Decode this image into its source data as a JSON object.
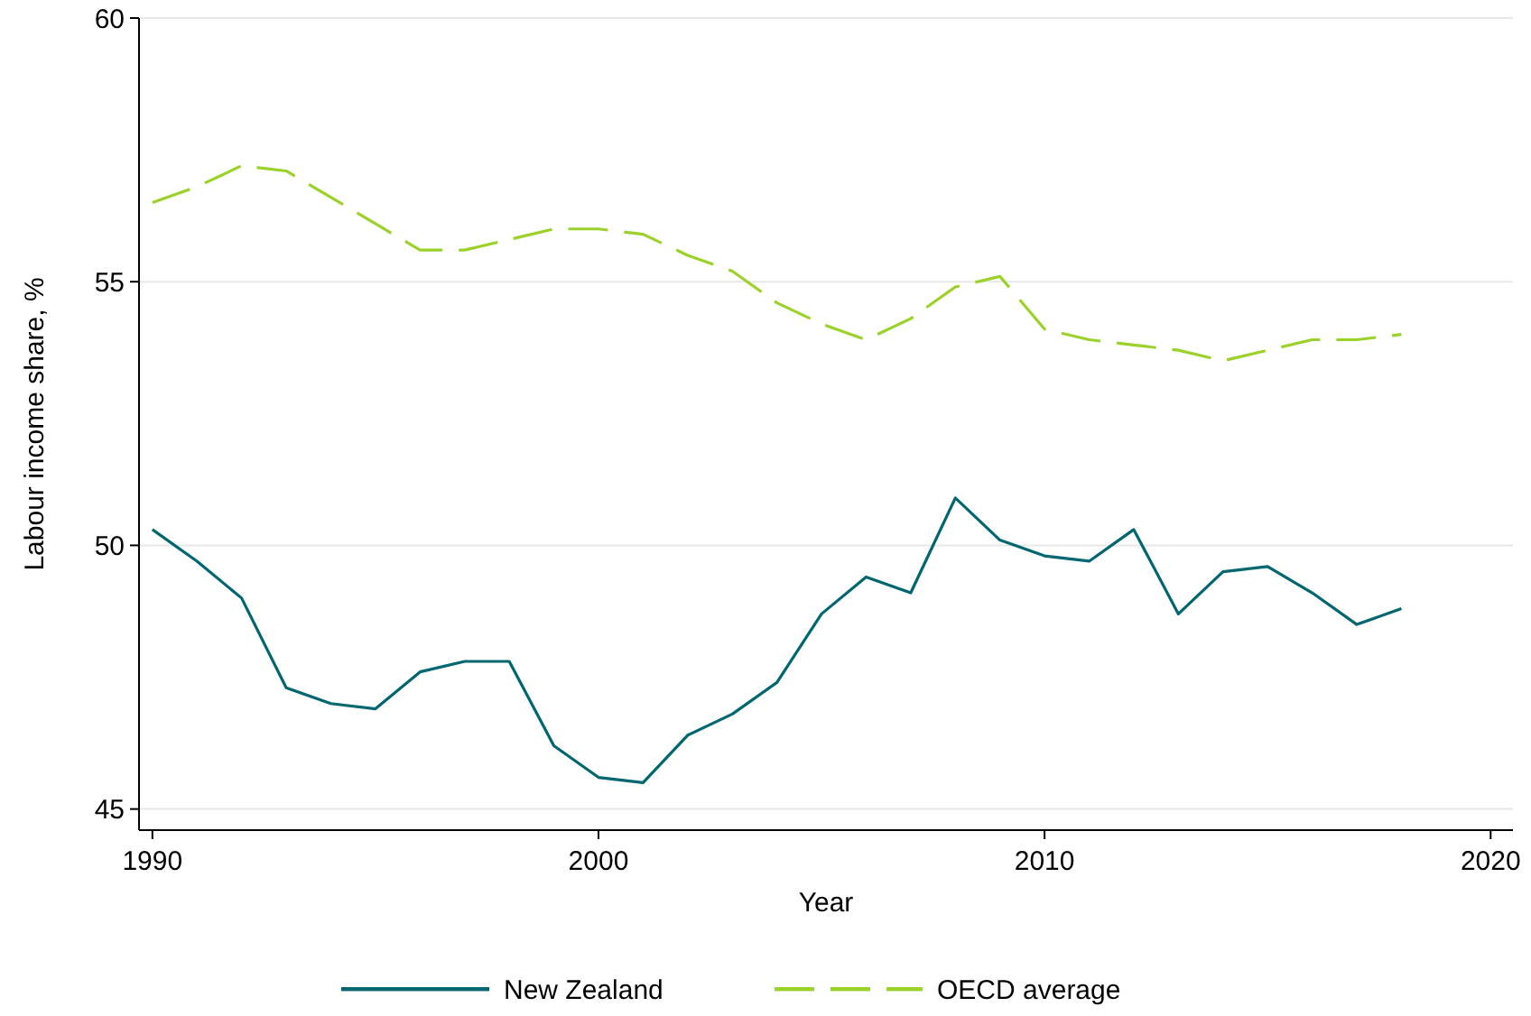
{
  "chart_data": {
    "type": "line",
    "xlabel": "Year",
    "ylabel": "Labour income share, %",
    "x": [
      1990,
      1991,
      1992,
      1993,
      1994,
      1995,
      1996,
      1997,
      1998,
      1999,
      2000,
      2001,
      2002,
      2003,
      2004,
      2005,
      2006,
      2007,
      2008,
      2009,
      2010,
      2011,
      2012,
      2013,
      2014,
      2015,
      2016,
      2017,
      2018
    ],
    "series": [
      {
        "name": "New Zealand",
        "color": "#00666f",
        "line_style": "solid",
        "values": [
          50.3,
          49.7,
          49.0,
          47.3,
          47.0,
          46.9,
          47.6,
          47.8,
          47.8,
          46.2,
          45.6,
          45.5,
          46.4,
          46.8,
          47.4,
          48.7,
          49.4,
          49.1,
          50.9,
          50.1,
          49.8,
          49.7,
          50.3,
          48.7,
          49.5,
          49.6,
          49.1,
          48.5,
          48.8
        ]
      },
      {
        "name": "OECD average",
        "color": "#9bd22a",
        "line_style": "dashed",
        "values": [
          56.5,
          56.8,
          57.2,
          57.1,
          56.6,
          56.1,
          55.6,
          55.6,
          55.8,
          56.0,
          56.0,
          55.9,
          55.5,
          55.2,
          54.6,
          54.2,
          53.9,
          54.3,
          54.9,
          55.1,
          54.1,
          53.9,
          53.8,
          53.7,
          53.5,
          53.7,
          53.9,
          53.9,
          54.0
        ]
      }
    ],
    "xlim": [
      1989.7,
      2020.5
    ],
    "ylim": [
      44.6,
      60
    ],
    "xticks": [
      1990,
      2000,
      2010,
      2020
    ],
    "yticks": [
      45,
      50,
      55,
      60
    ],
    "grid": "y",
    "legend": "bottom",
    "marker": "none"
  }
}
